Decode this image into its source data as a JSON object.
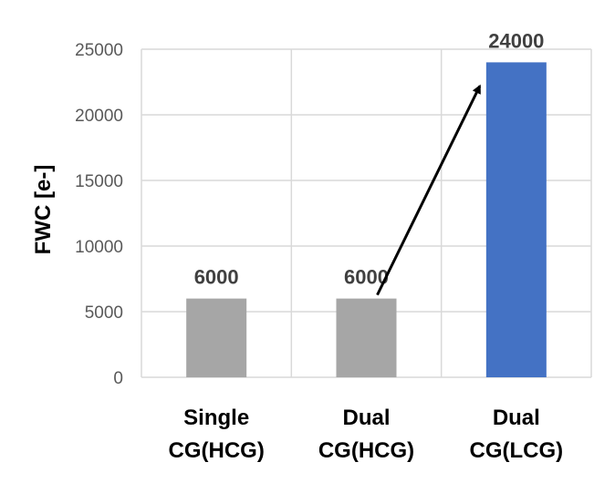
{
  "chart_data": {
    "type": "bar",
    "categories": [
      [
        "Single",
        "CG(HCG)"
      ],
      [
        "Dual",
        "CG(HCG)"
      ],
      [
        "Dual",
        "CG(LCG)"
      ]
    ],
    "values": [
      6000,
      6000,
      24000
    ],
    "data_labels": [
      "6000",
      "6000",
      "24000"
    ],
    "bar_colors": [
      "#a6a6a6",
      "#a6a6a6",
      "#4472c4"
    ],
    "ylabel": "FWC [e-]",
    "ylim": [
      0,
      25000
    ],
    "yticks": [
      0,
      5000,
      10000,
      15000,
      20000,
      25000
    ],
    "ytick_labels": [
      "0",
      "5000",
      "10000",
      "15000",
      "20000",
      "25000"
    ],
    "grid": true,
    "grid_color": "#d9d9d9",
    "annotation": {
      "type": "arrow",
      "from": {
        "category_index": 1,
        "value": 6000
      },
      "to": {
        "category_index": 2,
        "value": 24000
      },
      "color": "#000000"
    }
  }
}
